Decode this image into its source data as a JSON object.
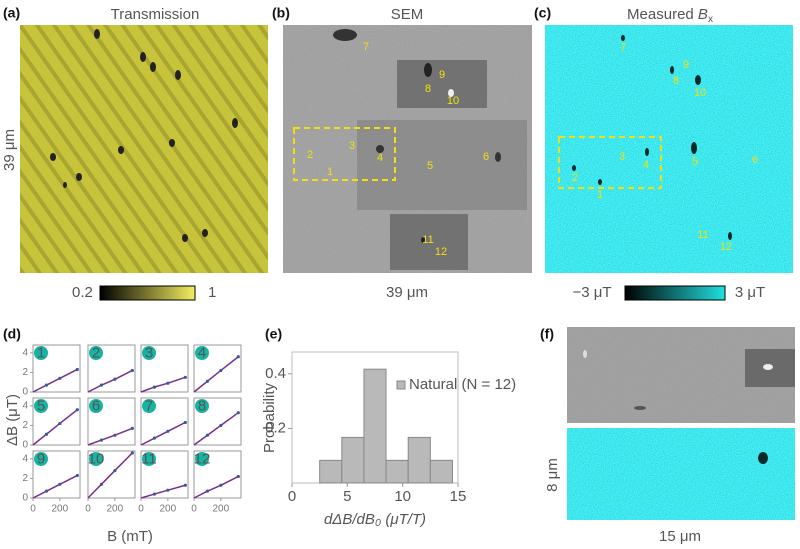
{
  "panel_a": {
    "tag": "(a)",
    "title": "Transmission",
    "scale": "39 μm",
    "colorbar": [
      "0.2",
      "1"
    ]
  },
  "panel_b": {
    "tag": "(b)",
    "title": "SEM",
    "scale": "39 μm",
    "labels": [
      "7",
      "9",
      "8",
      "10",
      "2",
      "3",
      "4",
      "1",
      "5",
      "6",
      "11",
      "12"
    ]
  },
  "panel_c": {
    "tag": "(c)",
    "title": "Measured",
    "symbol": "B",
    "subscript": "x",
    "colorbar": [
      "−3 μT",
      "3 μT"
    ],
    "labels": [
      "7",
      "9",
      "8",
      "10",
      "2",
      "3",
      "4",
      "1",
      "5",
      "6",
      "11",
      "12"
    ]
  },
  "panel_f": {
    "tag": "(f)",
    "scale_y": "8 μm",
    "scale_x": "15 μm"
  },
  "chart_data": [
    {
      "type": "line",
      "tag": "(d)",
      "ylabel": "ΔB (μT)",
      "xlabel": "B (mT)",
      "xlim": [
        0,
        350
      ],
      "ylim": [
        0,
        4.8
      ],
      "xticks": [
        0,
        200
      ],
      "yticks": [
        0,
        2,
        4
      ],
      "line_color": "#7b2d8e",
      "point_color": "#3a5a9a",
      "x": [
        0,
        100,
        200,
        330
      ],
      "panels": [
        {
          "label": "1",
          "values": [
            0,
            0.7,
            1.4,
            2.3
          ]
        },
        {
          "label": "2",
          "values": [
            0,
            0.7,
            1.3,
            2.2
          ]
        },
        {
          "label": "3",
          "values": [
            0,
            0.5,
            0.9,
            1.5
          ]
        },
        {
          "label": "4",
          "values": [
            0,
            1.1,
            2.2,
            3.6
          ]
        },
        {
          "label": "5",
          "values": [
            0,
            1.1,
            2.2,
            3.6
          ]
        },
        {
          "label": "6",
          "values": [
            0,
            0.5,
            1.0,
            1.7
          ]
        },
        {
          "label": "7",
          "values": [
            0,
            0.7,
            1.4,
            2.3
          ]
        },
        {
          "label": "8",
          "values": [
            0,
            1.0,
            2.0,
            3.3
          ]
        },
        {
          "label": "9",
          "values": [
            0,
            0.7,
            1.4,
            2.3
          ]
        },
        {
          "label": "10",
          "values": [
            0,
            1.4,
            2.8,
            4.6
          ]
        },
        {
          "label": "11",
          "values": [
            0,
            0.4,
            0.8,
            1.3
          ]
        },
        {
          "label": "12",
          "values": [
            0,
            0.7,
            1.3,
            2.2
          ]
        }
      ]
    },
    {
      "type": "histogram",
      "tag": "(e)",
      "ylabel": "Probability",
      "xlabel": "dΔB/dB₀ (μT/T)",
      "xlim": [
        0,
        15
      ],
      "ylim": [
        0,
        0.48
      ],
      "xticks": [
        0,
        5,
        10,
        15
      ],
      "yticks": [
        0.2,
        0.4
      ],
      "bins": [
        2.5,
        4.5,
        6.5,
        8.5,
        10.5,
        12.5,
        14.5
      ],
      "series": [
        {
          "name": "Natural (N = 12)",
          "color": "#b9b9b9",
          "values": [
            0.083,
            0.167,
            0.417,
            0.083,
            0.167,
            0.083
          ]
        }
      ]
    }
  ]
}
